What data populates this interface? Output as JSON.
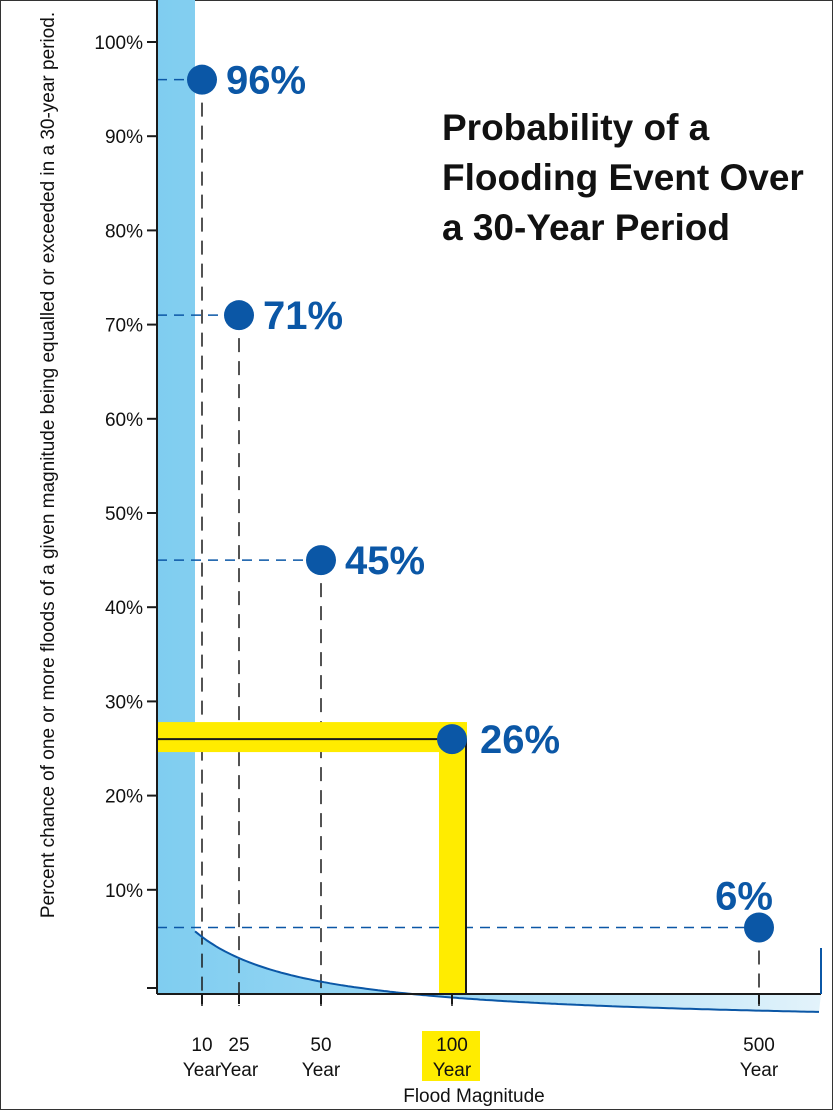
{
  "chart_data": {
    "type": "area",
    "title_lines": [
      "Probability of a",
      "Flooding Event Over",
      "a 30-Year Period"
    ],
    "ylabel": "Percent chance of one or more floods of a given magnitude being equalled or exceeded in a 30-year period.",
    "xlabel": "Flood Magnitude",
    "ylim": [
      0,
      100
    ],
    "yticks": [
      {
        "value": 100,
        "label": "100%"
      },
      {
        "value": 90,
        "label": "90%"
      },
      {
        "value": 80,
        "label": "80%"
      },
      {
        "value": 70,
        "label": "70%"
      },
      {
        "value": 60,
        "label": "60%"
      },
      {
        "value": 50,
        "label": "50%"
      },
      {
        "value": 40,
        "label": "40%"
      },
      {
        "value": 30,
        "label": "30%"
      },
      {
        "value": 20,
        "label": "20%"
      },
      {
        "value": 10,
        "label": "10%"
      }
    ],
    "points": [
      {
        "return_period": 10,
        "label_top": "10",
        "label_bottom": "Year",
        "value": 96,
        "value_label": "96%",
        "highlight": false
      },
      {
        "return_period": 25,
        "label_top": "25",
        "label_bottom": "Year",
        "value": 71,
        "value_label": "71%",
        "highlight": false
      },
      {
        "return_period": 50,
        "label_top": "50",
        "label_bottom": "Year",
        "value": 45,
        "value_label": "45%",
        "highlight": false
      },
      {
        "return_period": 100,
        "label_top": "100",
        "label_bottom": "Year",
        "value": 26,
        "value_label": "26%",
        "highlight": true
      },
      {
        "return_period": 500,
        "label_top": "500",
        "label_bottom": "Year",
        "value": 6,
        "value_label": "6%",
        "highlight": false
      }
    ],
    "colors": {
      "point": "#0b57a6",
      "curve": "#0b57a6",
      "area_start": "#7fcdf0",
      "area_end": "#e3f3fb",
      "highlight": "#ffec00",
      "label": "#0b57a6"
    },
    "grid": false
  }
}
